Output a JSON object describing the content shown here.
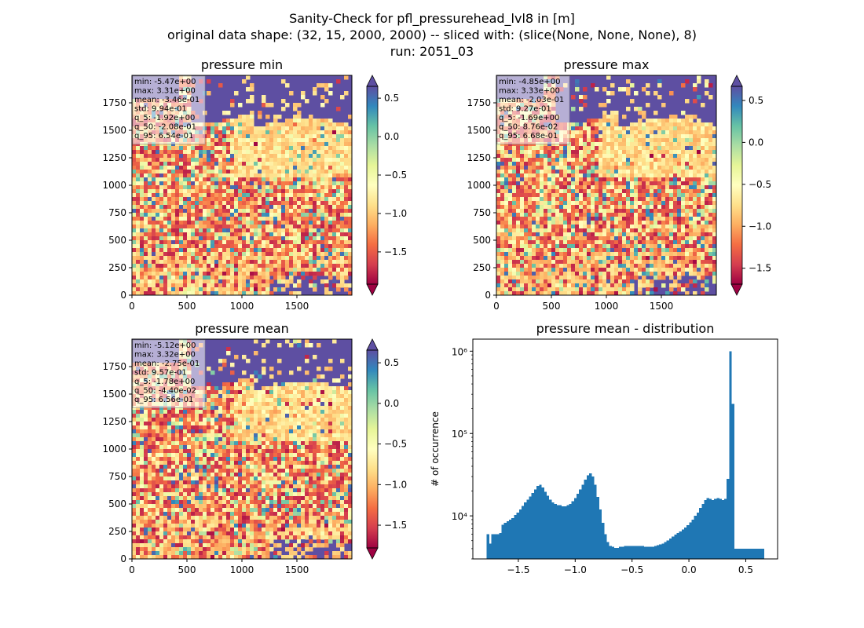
{
  "figure": {
    "title_lines": [
      "Sanity-Check for pfl_pressurehead_lvl8 in [m]",
      "original data shape: (32, 15, 2000, 2000) -- sliced with: (slice(None, None, None), 8)",
      "run: 2051_03"
    ]
  },
  "colors": {
    "hist_bar": "#1f77b4",
    "colormap_stops": [
      "#9e0142",
      "#d53e4f",
      "#f46d43",
      "#fdae61",
      "#fee08b",
      "#ffffbf",
      "#e6f598",
      "#abdda4",
      "#66c2a5",
      "#3288bd",
      "#5e4fa2"
    ],
    "sea": "#5e4fa2"
  },
  "chart_data": [
    {
      "type": "heatmap",
      "title": "pressure min",
      "x_ticks": [
        "0",
        "500",
        "1000",
        "1500"
      ],
      "y_ticks": [
        "0",
        "250",
        "500",
        "750",
        "1000",
        "1250",
        "1500",
        "1750"
      ],
      "xlim": [
        0,
        2000
      ],
      "ylim": [
        0,
        2000
      ],
      "colorbar": {
        "range": [
          -1.92,
          0.654
        ],
        "ticks": [
          "0.5",
          "0.0",
          "−0.5",
          "−1.0",
          "−1.5"
        ],
        "tick_values": [
          0.5,
          0.0,
          -0.5,
          -1.0,
          -1.5
        ],
        "extend": "both"
      },
      "stats": [
        "min: -5.47e+00",
        "max: 3.31e+00",
        "mean: -3.46e-01",
        "std: 9.94e-01",
        "q_5: -1.92e+00",
        "q_50: -2.08e-01",
        "q_95: 6.54e-01"
      ]
    },
    {
      "type": "heatmap",
      "title": "pressure max",
      "x_ticks": [
        "0",
        "500",
        "1000",
        "1500"
      ],
      "y_ticks": [
        "0",
        "250",
        "500",
        "750",
        "1000",
        "1250",
        "1500",
        "1750"
      ],
      "xlim": [
        0,
        2000
      ],
      "ylim": [
        0,
        2000
      ],
      "colorbar": {
        "range": [
          -1.69,
          0.668
        ],
        "ticks": [
          "0.5",
          "0.0",
          "−0.5",
          "−1.0",
          "−1.5"
        ],
        "tick_values": [
          0.5,
          0.0,
          -0.5,
          -1.0,
          -1.5
        ],
        "extend": "both"
      },
      "stats": [
        "min: -4.85e+00",
        "max: 3.33e+00",
        "mean: -2.03e-01",
        "std: 9.27e-01",
        "q_5: -1.69e+00",
        "q_50: 8.76e-02",
        "q_95: 6.68e-01"
      ]
    },
    {
      "type": "heatmap",
      "title": "pressure mean",
      "x_ticks": [
        "0",
        "500",
        "1000",
        "1500"
      ],
      "y_ticks": [
        "0",
        "250",
        "500",
        "750",
        "1000",
        "1250",
        "1500",
        "1750"
      ],
      "xlim": [
        0,
        2000
      ],
      "ylim": [
        0,
        2000
      ],
      "colorbar": {
        "range": [
          -1.78,
          0.656
        ],
        "ticks": [
          "0.5",
          "0.0",
          "−0.5",
          "−1.0",
          "−1.5"
        ],
        "tick_values": [
          0.5,
          0.0,
          -0.5,
          -1.0,
          -1.5
        ],
        "extend": "both"
      },
      "stats": [
        "min: -5.12e+00",
        "max: 3.32e+00",
        "mean: -2.75e-01",
        "std: 9.57e-01",
        "q_5: -1.78e+00",
        "q_50: -4.40e-02",
        "q_95: 6.56e-01"
      ]
    },
    {
      "type": "bar",
      "title": "pressure mean - distribution",
      "ylabel": "# of occurrence",
      "xlabel": "",
      "y_scale": "log",
      "xlim": [
        -1.9,
        0.78
      ],
      "ylim": [
        3000,
        1400000
      ],
      "x_ticks": [
        -1.5,
        -1.0,
        -0.5,
        0.0,
        0.5
      ],
      "x_tick_labels": [
        "−1.5",
        "−1.0",
        "−0.5",
        "0.0",
        "0.5"
      ],
      "y_ticks": [
        10000,
        100000,
        1000000
      ],
      "y_tick_labels": [
        "10⁴",
        "10⁵",
        "10⁶"
      ],
      "x": [
        -1.78,
        -1.758,
        -1.736,
        -1.714,
        -1.692,
        -1.67,
        -1.648,
        -1.626,
        -1.604,
        -1.582,
        -1.56,
        -1.538,
        -1.516,
        -1.494,
        -1.472,
        -1.45,
        -1.428,
        -1.406,
        -1.384,
        -1.362,
        -1.34,
        -1.318,
        -1.296,
        -1.274,
        -1.252,
        -1.23,
        -1.208,
        -1.186,
        -1.164,
        -1.142,
        -1.12,
        -1.098,
        -1.076,
        -1.054,
        -1.032,
        -1.01,
        -0.988,
        -0.966,
        -0.944,
        -0.922,
        -0.9,
        -0.878,
        -0.856,
        -0.834,
        -0.812,
        -0.79,
        -0.768,
        -0.746,
        -0.724,
        -0.702,
        -0.68,
        -0.658,
        -0.636,
        -0.614,
        -0.592,
        -0.57,
        -0.548,
        -0.526,
        -0.504,
        -0.482,
        -0.46,
        -0.438,
        -0.416,
        -0.394,
        -0.372,
        -0.35,
        -0.328,
        -0.306,
        -0.284,
        -0.262,
        -0.24,
        -0.218,
        -0.196,
        -0.174,
        -0.152,
        -0.13,
        -0.108,
        -0.086,
        -0.064,
        -0.042,
        -0.02,
        0.002,
        0.024,
        0.046,
        0.068,
        0.09,
        0.112,
        0.134,
        0.156,
        0.178,
        0.2,
        0.222,
        0.244,
        0.266,
        0.288,
        0.31,
        0.332,
        0.354,
        0.376,
        0.398,
        0.42,
        0.442,
        0.464,
        0.486,
        0.508,
        0.53,
        0.552,
        0.574,
        0.596,
        0.618,
        0.64
      ],
      "values": [
        6000,
        4600,
        6000,
        6000,
        6000,
        6200,
        7800,
        8200,
        8600,
        9000,
        9400,
        10200,
        11000,
        12000,
        13200,
        14500,
        15800,
        17200,
        19000,
        21000,
        23000,
        24000,
        22000,
        19500,
        17500,
        15800,
        14500,
        14000,
        13500,
        13500,
        13000,
        13000,
        13500,
        14000,
        15000,
        16500,
        18500,
        21000,
        24000,
        27500,
        31000,
        33000,
        30000,
        24000,
        17000,
        12000,
        8200,
        6000,
        4800,
        4300,
        4200,
        4100,
        4100,
        4200,
        4200,
        4300,
        4300,
        4300,
        4300,
        4300,
        4300,
        4300,
        4300,
        4200,
        4200,
        4200,
        4200,
        4300,
        4400,
        4500,
        4600,
        4800,
        5000,
        5300,
        5600,
        5900,
        6200,
        6500,
        6800,
        7200,
        7700,
        8300,
        9000,
        10000,
        11000,
        12500,
        14000,
        15500,
        16500,
        16000,
        15500,
        16000,
        16500,
        16000,
        15500,
        16000,
        28000,
        1000000,
        230000,
        4000,
        4000,
        4000,
        4000,
        4000,
        4000,
        4000,
        4000,
        4000,
        4000,
        4000,
        4000
      ]
    }
  ]
}
